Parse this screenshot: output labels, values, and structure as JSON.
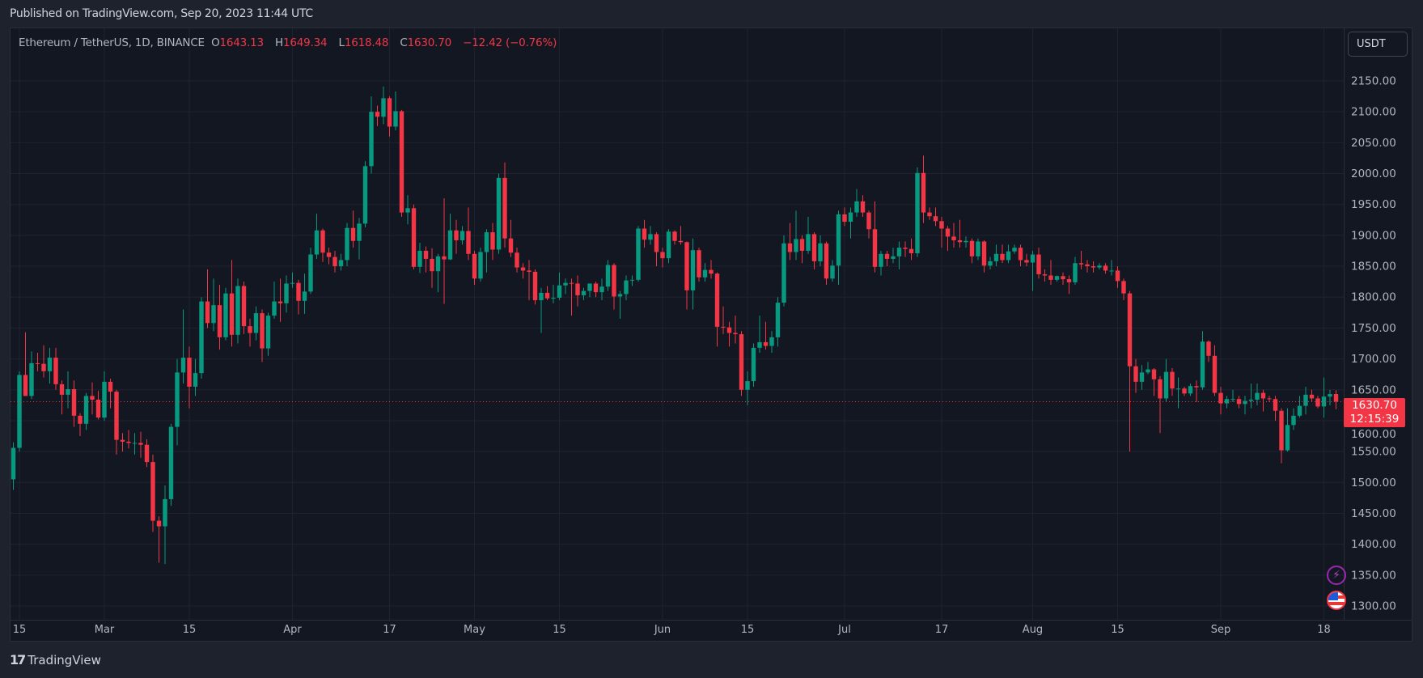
{
  "published": "Published on TradingView.com, Sep 20, 2023 11:44 UTC",
  "legend": {
    "symbol": "Ethereum / TetherUS, 1D, BINANCE",
    "o_label": "O",
    "o": "1643.13",
    "h_label": "H",
    "h": "1649.34",
    "l_label": "L",
    "l": "1618.48",
    "c_label": "C",
    "c": "1630.70",
    "change": "−12.42 (−0.76%)"
  },
  "currency_button": "USDT",
  "price_tag": {
    "price": "1630.70",
    "countdown": "12:15:39"
  },
  "logo": "TradingView",
  "colors": {
    "up": "#089981",
    "down": "#f23645",
    "bg": "#131722",
    "grid": "#1f2330"
  },
  "chart_data": {
    "type": "candlestick",
    "title": "Ethereum / TetherUS, 1D, BINANCE",
    "start_date": "2023-02-14",
    "interval": "1D",
    "ylim": [
      1300,
      2150
    ],
    "last_price": 1630.7,
    "y_ticks": [
      "2150.00",
      "2100.00",
      "2050.00",
      "2000.00",
      "1950.00",
      "1900.00",
      "1850.00",
      "1800.00",
      "1750.00",
      "1700.00",
      "1650.00",
      "1600.00",
      "1550.00",
      "1500.00",
      "1450.00",
      "1400.00",
      "1350.00",
      "1300.00"
    ],
    "x_ticks": [
      {
        "label": "15",
        "day": 1
      },
      {
        "label": "Mar",
        "day": 15
      },
      {
        "label": "15",
        "day": 29
      },
      {
        "label": "Apr",
        "day": 46
      },
      {
        "label": "17",
        "day": 62
      },
      {
        "label": "May",
        "day": 76
      },
      {
        "label": "15",
        "day": 90
      },
      {
        "label": "Jun",
        "day": 107
      },
      {
        "label": "15",
        "day": 121
      },
      {
        "label": "Jul",
        "day": 137
      },
      {
        "label": "17",
        "day": 153
      },
      {
        "label": "Aug",
        "day": 168
      },
      {
        "label": "15",
        "day": 182
      },
      {
        "label": "Sep",
        "day": 199
      },
      {
        "label": "18",
        "day": 216
      }
    ],
    "candles_ohlc": [
      [
        1505,
        1565,
        1488,
        1556
      ],
      [
        1556,
        1680,
        1550,
        1674
      ],
      [
        1674,
        1743,
        1640,
        1640
      ],
      [
        1640,
        1712,
        1635,
        1693
      ],
      [
        1693,
        1710,
        1680,
        1692
      ],
      [
        1692,
        1722,
        1670,
        1680
      ],
      [
        1680,
        1718,
        1660,
        1702
      ],
      [
        1702,
        1718,
        1650,
        1659
      ],
      [
        1659,
        1665,
        1610,
        1642
      ],
      [
        1642,
        1680,
        1620,
        1651
      ],
      [
        1651,
        1665,
        1590,
        1608
      ],
      [
        1608,
        1612,
        1575,
        1595
      ],
      [
        1595,
        1645,
        1585,
        1640
      ],
      [
        1640,
        1662,
        1610,
        1634
      ],
      [
        1634,
        1648,
        1602,
        1605
      ],
      [
        1605,
        1680,
        1600,
        1663
      ],
      [
        1663,
        1668,
        1620,
        1647
      ],
      [
        1647,
        1650,
        1545,
        1569
      ],
      [
        1569,
        1580,
        1550,
        1566
      ],
      [
        1566,
        1585,
        1555,
        1564
      ],
      [
        1564,
        1580,
        1545,
        1564
      ],
      [
        1564,
        1582,
        1540,
        1561
      ],
      [
        1561,
        1570,
        1525,
        1533
      ],
      [
        1533,
        1545,
        1420,
        1438
      ],
      [
        1438,
        1445,
        1370,
        1429
      ],
      [
        1429,
        1495,
        1368,
        1473
      ],
      [
        1473,
        1595,
        1462,
        1590
      ],
      [
        1590,
        1700,
        1560,
        1678
      ],
      [
        1678,
        1780,
        1660,
        1702
      ],
      [
        1702,
        1720,
        1620,
        1655
      ],
      [
        1655,
        1700,
        1640,
        1677
      ],
      [
        1677,
        1800,
        1668,
        1793
      ],
      [
        1793,
        1845,
        1750,
        1758
      ],
      [
        1758,
        1830,
        1745,
        1787
      ],
      [
        1787,
        1820,
        1715,
        1735
      ],
      [
        1735,
        1815,
        1730,
        1806
      ],
      [
        1806,
        1860,
        1720,
        1739
      ],
      [
        1739,
        1830,
        1725,
        1818
      ],
      [
        1818,
        1825,
        1740,
        1753
      ],
      [
        1753,
        1765,
        1720,
        1742
      ],
      [
        1742,
        1785,
        1730,
        1774
      ],
      [
        1774,
        1780,
        1695,
        1717
      ],
      [
        1717,
        1775,
        1705,
        1770
      ],
      [
        1770,
        1825,
        1765,
        1793
      ],
      [
        1793,
        1830,
        1760,
        1790
      ],
      [
        1790,
        1835,
        1775,
        1822
      ],
      [
        1822,
        1840,
        1815,
        1823
      ],
      [
        1823,
        1828,
        1772,
        1794
      ],
      [
        1794,
        1838,
        1773,
        1809
      ],
      [
        1809,
        1880,
        1805,
        1869
      ],
      [
        1869,
        1935,
        1862,
        1908
      ],
      [
        1908,
        1911,
        1857,
        1872
      ],
      [
        1872,
        1880,
        1853,
        1865
      ],
      [
        1865,
        1875,
        1840,
        1850
      ],
      [
        1850,
        1870,
        1843,
        1860
      ],
      [
        1860,
        1920,
        1850,
        1912
      ],
      [
        1912,
        1940,
        1880,
        1891
      ],
      [
        1891,
        1928,
        1861,
        1919
      ],
      [
        1919,
        2020,
        1913,
        2012
      ],
      [
        2012,
        2125,
        2000,
        2100
      ],
      [
        2100,
        2110,
        2077,
        2092
      ],
      [
        2092,
        2141,
        2080,
        2122
      ],
      [
        2122,
        2125,
        2060,
        2076
      ],
      [
        2076,
        2133,
        2070,
        2101
      ],
      [
        2101,
        2103,
        1930,
        1937
      ],
      [
        1937,
        1965,
        1918,
        1944
      ],
      [
        1944,
        1950,
        1845,
        1849
      ],
      [
        1849,
        1888,
        1839,
        1875
      ],
      [
        1875,
        1882,
        1840,
        1862
      ],
      [
        1862,
        1879,
        1815,
        1842
      ],
      [
        1842,
        1870,
        1808,
        1866
      ],
      [
        1866,
        1960,
        1789,
        1861
      ],
      [
        1861,
        1935,
        1860,
        1908
      ],
      [
        1908,
        1925,
        1870,
        1892
      ],
      [
        1892,
        1915,
        1885,
        1907
      ],
      [
        1907,
        1945,
        1860,
        1870
      ],
      [
        1870,
        1875,
        1820,
        1830
      ],
      [
        1830,
        1880,
        1825,
        1873
      ],
      [
        1873,
        1910,
        1840,
        1905
      ],
      [
        1905,
        1920,
        1860,
        1877
      ],
      [
        1877,
        2000,
        1870,
        1993
      ],
      [
        1993,
        2018,
        1880,
        1895
      ],
      [
        1895,
        1925,
        1865,
        1872
      ],
      [
        1872,
        1880,
        1840,
        1848
      ],
      [
        1848,
        1855,
        1830,
        1843
      ],
      [
        1843,
        1860,
        1795,
        1841
      ],
      [
        1841,
        1845,
        1788,
        1795
      ],
      [
        1795,
        1815,
        1742,
        1807
      ],
      [
        1807,
        1818,
        1795,
        1798
      ],
      [
        1798,
        1820,
        1790,
        1799
      ],
      [
        1799,
        1840,
        1795,
        1819
      ],
      [
        1819,
        1830,
        1805,
        1823
      ],
      [
        1823,
        1830,
        1770,
        1822
      ],
      [
        1822,
        1835,
        1785,
        1803
      ],
      [
        1803,
        1815,
        1795,
        1810
      ],
      [
        1810,
        1822,
        1800,
        1822
      ],
      [
        1822,
        1825,
        1800,
        1808
      ],
      [
        1808,
        1830,
        1795,
        1817
      ],
      [
        1817,
        1860,
        1810,
        1852
      ],
      [
        1852,
        1855,
        1780,
        1801
      ],
      [
        1801,
        1810,
        1765,
        1805
      ],
      [
        1805,
        1835,
        1795,
        1827
      ],
      [
        1827,
        1835,
        1818,
        1828
      ],
      [
        1828,
        1915,
        1825,
        1911
      ],
      [
        1911,
        1925,
        1880,
        1893
      ],
      [
        1893,
        1915,
        1885,
        1902
      ],
      [
        1902,
        1905,
        1850,
        1873
      ],
      [
        1873,
        1880,
        1848,
        1863
      ],
      [
        1863,
        1910,
        1855,
        1906
      ],
      [
        1906,
        1908,
        1885,
        1891
      ],
      [
        1891,
        1915,
        1885,
        1889
      ],
      [
        1889,
        1890,
        1780,
        1811
      ],
      [
        1811,
        1895,
        1780,
        1876
      ],
      [
        1876,
        1880,
        1825,
        1832
      ],
      [
        1832,
        1855,
        1825,
        1844
      ],
      [
        1844,
        1860,
        1830,
        1838
      ],
      [
        1838,
        1840,
        1720,
        1752
      ],
      [
        1752,
        1785,
        1740,
        1751
      ],
      [
        1751,
        1760,
        1720,
        1742
      ],
      [
        1742,
        1770,
        1725,
        1740
      ],
      [
        1740,
        1745,
        1640,
        1650
      ],
      [
        1650,
        1680,
        1625,
        1664
      ],
      [
        1664,
        1725,
        1655,
        1718
      ],
      [
        1718,
        1770,
        1710,
        1727
      ],
      [
        1727,
        1760,
        1715,
        1721
      ],
      [
        1721,
        1745,
        1710,
        1735
      ],
      [
        1735,
        1800,
        1720,
        1791
      ],
      [
        1791,
        1900,
        1785,
        1887
      ],
      [
        1887,
        1920,
        1860,
        1873
      ],
      [
        1873,
        1940,
        1860,
        1894
      ],
      [
        1894,
        1900,
        1855,
        1875
      ],
      [
        1875,
        1930,
        1870,
        1902
      ],
      [
        1902,
        1905,
        1845,
        1858
      ],
      [
        1858,
        1900,
        1850,
        1887
      ],
      [
        1887,
        1890,
        1820,
        1830
      ],
      [
        1830,
        1860,
        1825,
        1851
      ],
      [
        1851,
        1940,
        1820,
        1934
      ],
      [
        1934,
        1945,
        1915,
        1922
      ],
      [
        1922,
        1945,
        1895,
        1937
      ],
      [
        1937,
        1975,
        1930,
        1955
      ],
      [
        1955,
        1965,
        1930,
        1937
      ],
      [
        1937,
        1940,
        1895,
        1910
      ],
      [
        1910,
        1955,
        1840,
        1849
      ],
      [
        1849,
        1875,
        1835,
        1870
      ],
      [
        1870,
        1875,
        1850,
        1862
      ],
      [
        1862,
        1880,
        1855,
        1866
      ],
      [
        1866,
        1890,
        1845,
        1880
      ],
      [
        1880,
        1890,
        1865,
        1878
      ],
      [
        1878,
        1895,
        1860,
        1871
      ],
      [
        1871,
        2010,
        1865,
        2001
      ],
      [
        2001,
        2029,
        1920,
        1937
      ],
      [
        1937,
        1945,
        1925,
        1931
      ],
      [
        1931,
        1945,
        1915,
        1923
      ],
      [
        1923,
        1930,
        1880,
        1911
      ],
      [
        1911,
        1915,
        1875,
        1898
      ],
      [
        1898,
        1920,
        1880,
        1892
      ],
      [
        1892,
        1925,
        1880,
        1889
      ],
      [
        1889,
        1898,
        1880,
        1891
      ],
      [
        1891,
        1895,
        1855,
        1866
      ],
      [
        1866,
        1895,
        1860,
        1890
      ],
      [
        1890,
        1892,
        1840,
        1851
      ],
      [
        1851,
        1865,
        1845,
        1858
      ],
      [
        1858,
        1885,
        1850,
        1870
      ],
      [
        1870,
        1885,
        1855,
        1860
      ],
      [
        1860,
        1885,
        1855,
        1874
      ],
      [
        1874,
        1885,
        1870,
        1880
      ],
      [
        1880,
        1885,
        1850,
        1860
      ],
      [
        1860,
        1870,
        1850,
        1856
      ],
      [
        1856,
        1875,
        1810,
        1869
      ],
      [
        1869,
        1880,
        1830,
        1837
      ],
      [
        1837,
        1845,
        1825,
        1835
      ],
      [
        1835,
        1860,
        1820,
        1828
      ],
      [
        1828,
        1835,
        1825,
        1834
      ],
      [
        1834,
        1840,
        1820,
        1829
      ],
      [
        1829,
        1835,
        1805,
        1824
      ],
      [
        1824,
        1865,
        1820,
        1855
      ],
      [
        1855,
        1875,
        1845,
        1853
      ],
      [
        1853,
        1860,
        1840,
        1850
      ],
      [
        1850,
        1858,
        1840,
        1848
      ],
      [
        1848,
        1855,
        1845,
        1851
      ],
      [
        1851,
        1855,
        1838,
        1843
      ],
      [
        1843,
        1860,
        1835,
        1843
      ],
      [
        1843,
        1850,
        1815,
        1826
      ],
      [
        1826,
        1830,
        1795,
        1806
      ],
      [
        1806,
        1810,
        1550,
        1688
      ],
      [
        1688,
        1700,
        1645,
        1663
      ],
      [
        1663,
        1690,
        1650,
        1678
      ],
      [
        1678,
        1695,
        1675,
        1683
      ],
      [
        1683,
        1685,
        1640,
        1667
      ],
      [
        1667,
        1672,
        1580,
        1636
      ],
      [
        1636,
        1700,
        1630,
        1679
      ],
      [
        1679,
        1685,
        1640,
        1652
      ],
      [
        1652,
        1670,
        1620,
        1652
      ],
      [
        1652,
        1655,
        1640,
        1644
      ],
      [
        1644,
        1660,
        1640,
        1656
      ],
      [
        1656,
        1665,
        1630,
        1654
      ],
      [
        1654,
        1745,
        1650,
        1728
      ],
      [
        1728,
        1730,
        1695,
        1705
      ],
      [
        1705,
        1722,
        1640,
        1645
      ],
      [
        1645,
        1655,
        1610,
        1628
      ],
      [
        1628,
        1640,
        1620,
        1635
      ],
      [
        1635,
        1650,
        1630,
        1635
      ],
      [
        1635,
        1640,
        1620,
        1627
      ],
      [
        1627,
        1640,
        1610,
        1632
      ],
      [
        1632,
        1660,
        1620,
        1634
      ],
      [
        1634,
        1660,
        1625,
        1645
      ],
      [
        1645,
        1650,
        1615,
        1636
      ],
      [
        1636,
        1640,
        1630,
        1635
      ],
      [
        1635,
        1640,
        1600,
        1616
      ],
      [
        1616,
        1620,
        1531,
        1552
      ],
      [
        1552,
        1620,
        1550,
        1593
      ],
      [
        1593,
        1620,
        1585,
        1608
      ],
      [
        1608,
        1640,
        1605,
        1624
      ],
      [
        1624,
        1655,
        1610,
        1642
      ],
      [
        1642,
        1650,
        1630,
        1636
      ],
      [
        1636,
        1640,
        1620,
        1623
      ],
      [
        1623,
        1670,
        1605,
        1639
      ],
      [
        1639,
        1650,
        1625,
        1643
      ],
      [
        1643.13,
        1649.34,
        1618.48,
        1630.7
      ]
    ]
  }
}
